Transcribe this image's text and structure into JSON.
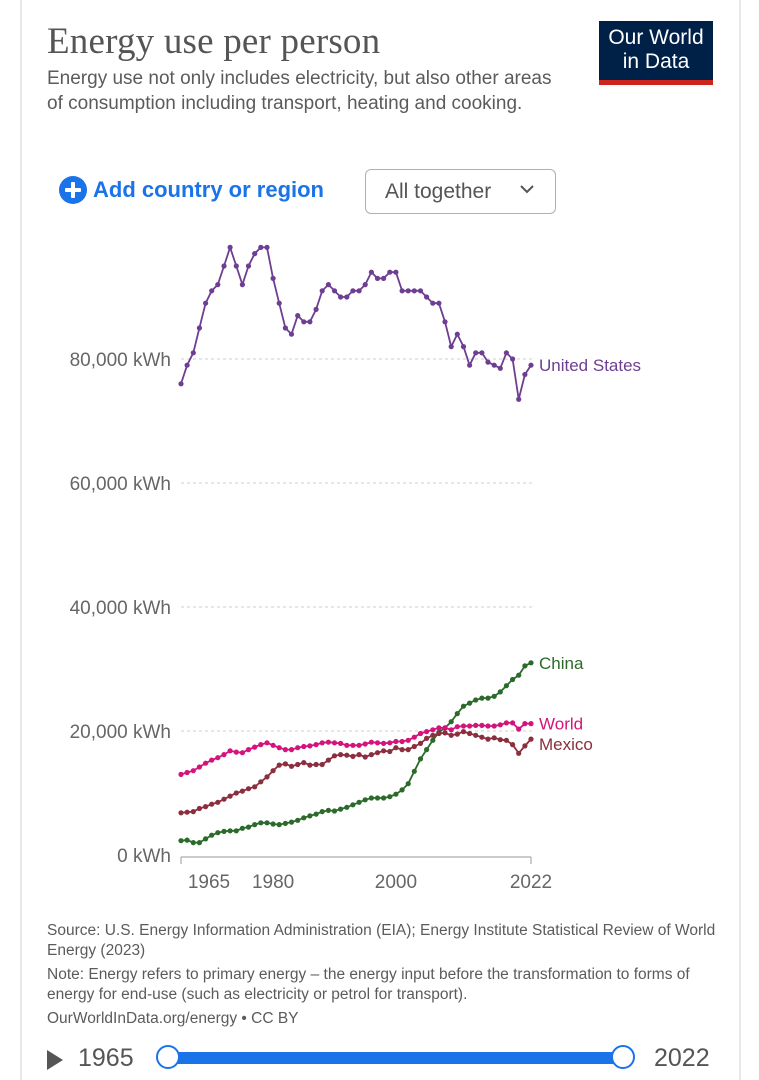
{
  "header": {
    "title": "Energy use per person",
    "subtitle": "Energy use not only includes electricity, but also other areas of consumption including transport, heating and cooking.",
    "logo": "Our World in Data"
  },
  "controls": {
    "add_label": "Add country or region",
    "mode_label": "All together"
  },
  "chart_data": {
    "type": "line",
    "title": "Energy use per person",
    "ylim": [
      0,
      100000
    ],
    "xlim": [
      1965,
      2022
    ],
    "y_ticks": [
      "0 kWh",
      "20,000 kWh",
      "40,000 kWh",
      "60,000 kWh",
      "80,000 kWh"
    ],
    "y_tick_values": [
      0,
      20000,
      40000,
      60000,
      80000
    ],
    "x_ticks": [
      "1965",
      "1980",
      "2000",
      "2022"
    ],
    "x_tick_values": [
      1965,
      1980,
      2000,
      2022
    ],
    "grid": true,
    "legend": "inline-right",
    "series": [
      {
        "name": "United States",
        "color": "#6d3e91",
        "points": [
          [
            1965,
            76000
          ],
          [
            1966,
            79000
          ],
          [
            1967,
            81000
          ],
          [
            1968,
            85000
          ],
          [
            1969,
            89000
          ],
          [
            1970,
            91000
          ],
          [
            1971,
            92000
          ],
          [
            1972,
            95000
          ],
          [
            1973,
            98000
          ],
          [
            1974,
            95000
          ],
          [
            1975,
            92000
          ],
          [
            1976,
            95000
          ],
          [
            1977,
            97000
          ],
          [
            1978,
            98000
          ],
          [
            1979,
            98000
          ],
          [
            1980,
            93000
          ],
          [
            1981,
            89000
          ],
          [
            1982,
            85000
          ],
          [
            1983,
            84000
          ],
          [
            1984,
            87000
          ],
          [
            1985,
            86000
          ],
          [
            1986,
            86000
          ],
          [
            1987,
            88000
          ],
          [
            1988,
            91000
          ],
          [
            1989,
            92000
          ],
          [
            1990,
            91000
          ],
          [
            1991,
            90000
          ],
          [
            1992,
            90000
          ],
          [
            1993,
            91000
          ],
          [
            1994,
            91000
          ],
          [
            1995,
            92000
          ],
          [
            1996,
            94000
          ],
          [
            1997,
            93000
          ],
          [
            1998,
            93000
          ],
          [
            1999,
            94000
          ],
          [
            2000,
            94000
          ],
          [
            2001,
            91000
          ],
          [
            2002,
            91000
          ],
          [
            2003,
            91000
          ],
          [
            2004,
            91000
          ],
          [
            2005,
            90000
          ],
          [
            2006,
            89000
          ],
          [
            2007,
            89000
          ],
          [
            2008,
            86000
          ],
          [
            2009,
            82000
          ],
          [
            2010,
            84000
          ],
          [
            2011,
            82000
          ],
          [
            2012,
            79000
          ],
          [
            2013,
            81000
          ],
          [
            2014,
            81000
          ],
          [
            2015,
            79500
          ],
          [
            2016,
            79000
          ],
          [
            2017,
            78500
          ],
          [
            2018,
            81000
          ],
          [
            2019,
            80000
          ],
          [
            2020,
            73500
          ],
          [
            2021,
            77500
          ],
          [
            2022,
            79000
          ]
        ]
      },
      {
        "name": "China",
        "color": "#2b6a2b",
        "points": [
          [
            1965,
            2300
          ],
          [
            1966,
            2400
          ],
          [
            1967,
            2000
          ],
          [
            1968,
            2000
          ],
          [
            1969,
            2600
          ],
          [
            1970,
            3200
          ],
          [
            1971,
            3600
          ],
          [
            1972,
            3800
          ],
          [
            1973,
            3900
          ],
          [
            1974,
            3900
          ],
          [
            1975,
            4300
          ],
          [
            1976,
            4500
          ],
          [
            1977,
            4900
          ],
          [
            1978,
            5200
          ],
          [
            1979,
            5200
          ],
          [
            1980,
            5000
          ],
          [
            1981,
            4900
          ],
          [
            1982,
            5100
          ],
          [
            1983,
            5300
          ],
          [
            1984,
            5600
          ],
          [
            1985,
            6000
          ],
          [
            1986,
            6300
          ],
          [
            1987,
            6600
          ],
          [
            1988,
            7000
          ],
          [
            1989,
            7200
          ],
          [
            1990,
            7100
          ],
          [
            1991,
            7400
          ],
          [
            1992,
            7700
          ],
          [
            1993,
            8100
          ],
          [
            1994,
            8500
          ],
          [
            1995,
            8900
          ],
          [
            1996,
            9200
          ],
          [
            1997,
            9200
          ],
          [
            1998,
            9200
          ],
          [
            1999,
            9400
          ],
          [
            2000,
            9800
          ],
          [
            2001,
            10500
          ],
          [
            2002,
            11500
          ],
          [
            2003,
            13500
          ],
          [
            2004,
            15500
          ],
          [
            2005,
            17000
          ],
          [
            2006,
            18500
          ],
          [
            2007,
            19800
          ],
          [
            2008,
            20500
          ],
          [
            2009,
            21500
          ],
          [
            2010,
            22800
          ],
          [
            2011,
            24000
          ],
          [
            2012,
            24500
          ],
          [
            2013,
            25000
          ],
          [
            2014,
            25300
          ],
          [
            2015,
            25300
          ],
          [
            2016,
            25600
          ],
          [
            2017,
            26300
          ],
          [
            2018,
            27300
          ],
          [
            2019,
            28300
          ],
          [
            2020,
            29000
          ],
          [
            2021,
            30500
          ],
          [
            2022,
            31000
          ]
        ]
      },
      {
        "name": "World",
        "color": "#d5137c",
        "points": [
          [
            1965,
            13000
          ],
          [
            1966,
            13300
          ],
          [
            1967,
            13600
          ],
          [
            1968,
            14200
          ],
          [
            1969,
            14800
          ],
          [
            1970,
            15300
          ],
          [
            1971,
            15700
          ],
          [
            1972,
            16200
          ],
          [
            1973,
            16800
          ],
          [
            1974,
            16600
          ],
          [
            1975,
            16500
          ],
          [
            1976,
            17000
          ],
          [
            1977,
            17400
          ],
          [
            1978,
            17800
          ],
          [
            1979,
            18100
          ],
          [
            1980,
            17700
          ],
          [
            1981,
            17300
          ],
          [
            1982,
            17000
          ],
          [
            1983,
            17000
          ],
          [
            1984,
            17300
          ],
          [
            1985,
            17500
          ],
          [
            1986,
            17600
          ],
          [
            1987,
            17800
          ],
          [
            1988,
            18100
          ],
          [
            1989,
            18200
          ],
          [
            1990,
            18100
          ],
          [
            1991,
            18000
          ],
          [
            1992,
            17700
          ],
          [
            1993,
            17700
          ],
          [
            1994,
            17700
          ],
          [
            1995,
            17900
          ],
          [
            1996,
            18200
          ],
          [
            1997,
            18100
          ],
          [
            1998,
            18000
          ],
          [
            1999,
            18100
          ],
          [
            2000,
            18300
          ],
          [
            2001,
            18300
          ],
          [
            2002,
            18500
          ],
          [
            2003,
            19000
          ],
          [
            2004,
            19600
          ],
          [
            2005,
            19900
          ],
          [
            2006,
            20200
          ],
          [
            2007,
            20500
          ],
          [
            2008,
            20500
          ],
          [
            2009,
            20200
          ],
          [
            2010,
            20700
          ],
          [
            2011,
            20800
          ],
          [
            2012,
            20800
          ],
          [
            2013,
            20900
          ],
          [
            2014,
            20900
          ],
          [
            2015,
            20800
          ],
          [
            2016,
            20800
          ],
          [
            2017,
            21000
          ],
          [
            2018,
            21300
          ],
          [
            2019,
            21300
          ],
          [
            2020,
            20300
          ],
          [
            2021,
            21200
          ],
          [
            2022,
            21200
          ]
        ]
      },
      {
        "name": "Mexico",
        "color": "#8b2e3e",
        "points": [
          [
            1965,
            6800
          ],
          [
            1966,
            6900
          ],
          [
            1967,
            7000
          ],
          [
            1968,
            7500
          ],
          [
            1969,
            7800
          ],
          [
            1970,
            8200
          ],
          [
            1971,
            8500
          ],
          [
            1972,
            9000
          ],
          [
            1973,
            9500
          ],
          [
            1974,
            10000
          ],
          [
            1975,
            10300
          ],
          [
            1976,
            10700
          ],
          [
            1977,
            11000
          ],
          [
            1978,
            11800
          ],
          [
            1979,
            12600
          ],
          [
            1980,
            13600
          ],
          [
            1981,
            14500
          ],
          [
            1982,
            14700
          ],
          [
            1983,
            14300
          ],
          [
            1984,
            14600
          ],
          [
            1985,
            14900
          ],
          [
            1986,
            14500
          ],
          [
            1987,
            14600
          ],
          [
            1988,
            14600
          ],
          [
            1989,
            15300
          ],
          [
            1990,
            16000
          ],
          [
            1991,
            16200
          ],
          [
            1992,
            16100
          ],
          [
            1993,
            15900
          ],
          [
            1994,
            16200
          ],
          [
            1995,
            15800
          ],
          [
            1996,
            16200
          ],
          [
            1997,
            16500
          ],
          [
            1998,
            16800
          ],
          [
            1999,
            16700
          ],
          [
            2000,
            17300
          ],
          [
            2001,
            17000
          ],
          [
            2002,
            17000
          ],
          [
            2003,
            17500
          ],
          [
            2004,
            18000
          ],
          [
            2005,
            18800
          ],
          [
            2006,
            19300
          ],
          [
            2007,
            19600
          ],
          [
            2008,
            19700
          ],
          [
            2009,
            19300
          ],
          [
            2010,
            19500
          ],
          [
            2011,
            19900
          ],
          [
            2012,
            19600
          ],
          [
            2013,
            19300
          ],
          [
            2014,
            19000
          ],
          [
            2015,
            18700
          ],
          [
            2016,
            18900
          ],
          [
            2017,
            18600
          ],
          [
            2018,
            18500
          ],
          [
            2019,
            17800
          ],
          [
            2020,
            16400
          ],
          [
            2021,
            17600
          ],
          [
            2022,
            18700
          ]
        ]
      }
    ]
  },
  "footer": {
    "source": "Source: U.S. Energy Information Administration (EIA); Energy Institute Statistical Review of World Energy (2023)",
    "note": "Note: Energy refers to primary energy – the energy input before the transformation to forms of energy for end-use (such as electricity or petrol for transport).",
    "credit": "OurWorldInData.org/energy • CC BY"
  },
  "timeline": {
    "start": "1965",
    "end": "2022"
  },
  "colors": {
    "accent": "#1a73e8",
    "logo_bg": "#002147",
    "logo_bar": "#ce261e"
  }
}
